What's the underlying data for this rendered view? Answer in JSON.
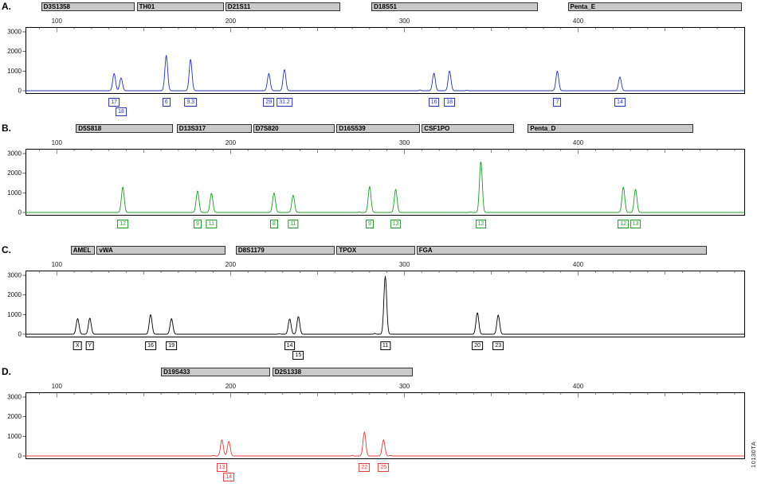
{
  "figure": {
    "x_range": [
      82,
      496
    ],
    "x_ticks": [
      100,
      200,
      300,
      400
    ],
    "y_ticks": [
      0,
      1000,
      2000,
      3000
    ],
    "y_max": 3000
  },
  "watermark": "10130TA",
  "chart_data": [
    {
      "type": "line",
      "subtype": "str-electropherogram",
      "panel": "A.",
      "color": "#2433b3",
      "ylim": [
        0,
        3000
      ],
      "markers": [
        {
          "label": "D3S1358",
          "start": 91,
          "end": 145
        },
        {
          "label": "TH01",
          "start": 146,
          "end": 196
        },
        {
          "label": "D21S11",
          "start": 197,
          "end": 263
        },
        {
          "label": "D18S51",
          "start": 281,
          "end": 377
        },
        {
          "label": "Penta_E",
          "start": 394,
          "end": 494
        }
      ],
      "peaks": [
        {
          "x": 133,
          "rfu": 880,
          "allele": "17",
          "row": 1
        },
        {
          "x": 137,
          "rfu": 650,
          "allele": "18",
          "row": 2
        },
        {
          "x": 163,
          "rfu": 1800,
          "allele": "6",
          "row": 1
        },
        {
          "x": 177,
          "rfu": 1600,
          "allele": "9.3",
          "row": 1
        },
        {
          "x": 222,
          "rfu": 880,
          "allele": "29",
          "row": 1
        },
        {
          "x": 231,
          "rfu": 1080,
          "allele": "31.2",
          "row": 1
        },
        {
          "x": 317,
          "rfu": 900,
          "allele": "16",
          "row": 1
        },
        {
          "x": 326,
          "rfu": 1010,
          "allele": "18",
          "row": 1
        },
        {
          "x": 388,
          "rfu": 1000,
          "allele": "7",
          "row": 1
        },
        {
          "x": 424,
          "rfu": 700,
          "allele": "14",
          "row": 1
        }
      ],
      "noise": [
        {
          "x": 309,
          "rfu": 40
        },
        {
          "x": 336,
          "rfu": 25
        }
      ]
    },
    {
      "type": "line",
      "subtype": "str-electropherogram",
      "panel": "B.",
      "color": "#1d9b28",
      "ylim": [
        0,
        3000
      ],
      "markers": [
        {
          "label": "D5S818",
          "start": 111,
          "end": 167
        },
        {
          "label": "D13S317",
          "start": 169,
          "end": 212
        },
        {
          "label": "D7S820",
          "start": 213,
          "end": 260
        },
        {
          "label": "D16S539",
          "start": 261,
          "end": 309
        },
        {
          "label": "CSF1PO",
          "start": 310,
          "end": 363
        },
        {
          "label": "Penta_D",
          "start": 371,
          "end": 466
        }
      ],
      "peaks": [
        {
          "x": 138,
          "rfu": 1300,
          "allele": "12",
          "row": 1
        },
        {
          "x": 181,
          "rfu": 1100,
          "allele": "9",
          "row": 1
        },
        {
          "x": 189,
          "rfu": 980,
          "allele": "11",
          "row": 1
        },
        {
          "x": 225,
          "rfu": 1000,
          "allele": "8",
          "row": 1
        },
        {
          "x": 236,
          "rfu": 880,
          "allele": "11",
          "row": 1
        },
        {
          "x": 280,
          "rfu": 1320,
          "allele": "9",
          "row": 1
        },
        {
          "x": 295,
          "rfu": 1180,
          "allele": "13",
          "row": 1
        },
        {
          "x": 344,
          "rfu": 2600,
          "allele": "12",
          "row": 1
        },
        {
          "x": 426,
          "rfu": 1300,
          "allele": "12",
          "row": 1
        },
        {
          "x": 433,
          "rfu": 1180,
          "allele": "13",
          "row": 1
        }
      ],
      "noise": [
        {
          "x": 338,
          "rfu": 35
        },
        {
          "x": 274,
          "rfu": 25
        }
      ]
    },
    {
      "type": "line",
      "subtype": "str-electropherogram",
      "panel": "C.",
      "color": "#000000",
      "ylim": [
        0,
        3000
      ],
      "markers": [
        {
          "label": "AMEL",
          "start": 108,
          "end": 122
        },
        {
          "label": "vWA",
          "start": 123,
          "end": 197
        },
        {
          "label": "D8S1179",
          "start": 203,
          "end": 260
        },
        {
          "label": "TPOX",
          "start": 261,
          "end": 306
        },
        {
          "label": "FGA",
          "start": 307,
          "end": 474
        }
      ],
      "peaks": [
        {
          "x": 112,
          "rfu": 800,
          "allele": "X",
          "row": 1
        },
        {
          "x": 119,
          "rfu": 820,
          "allele": "Y",
          "row": 1
        },
        {
          "x": 154,
          "rfu": 1000,
          "allele": "16",
          "row": 1
        },
        {
          "x": 166,
          "rfu": 800,
          "allele": "19",
          "row": 1
        },
        {
          "x": 234,
          "rfu": 780,
          "allele": "14",
          "row": 1
        },
        {
          "x": 239,
          "rfu": 900,
          "allele": "15",
          "row": 2
        },
        {
          "x": 289,
          "rfu": 2950,
          "allele": "11",
          "row": 1
        },
        {
          "x": 342,
          "rfu": 1100,
          "allele": "20",
          "row": 1
        },
        {
          "x": 354,
          "rfu": 980,
          "allele": "23",
          "row": 1
        }
      ],
      "noise": [
        {
          "x": 228,
          "rfu": 30
        },
        {
          "x": 283,
          "rfu": 45
        }
      ]
    },
    {
      "type": "line",
      "subtype": "str-electropherogram",
      "panel": "D.",
      "color": "#e23b3b",
      "ylim": [
        0,
        3000
      ],
      "markers": [
        {
          "label": "D19S433",
          "start": 160,
          "end": 223
        },
        {
          "label": "D2S1338",
          "start": 224,
          "end": 305
        }
      ],
      "peaks": [
        {
          "x": 195,
          "rfu": 820,
          "allele": "13",
          "row": 1
        },
        {
          "x": 199,
          "rfu": 740,
          "allele": "14",
          "row": 2
        },
        {
          "x": 277,
          "rfu": 1230,
          "allele": "22",
          "row": 1
        },
        {
          "x": 288,
          "rfu": 830,
          "allele": "25",
          "row": 1
        }
      ],
      "noise": [
        {
          "x": 190,
          "rfu": 30
        },
        {
          "x": 270,
          "rfu": 35
        },
        {
          "x": 292,
          "rfu": 25
        }
      ]
    }
  ]
}
